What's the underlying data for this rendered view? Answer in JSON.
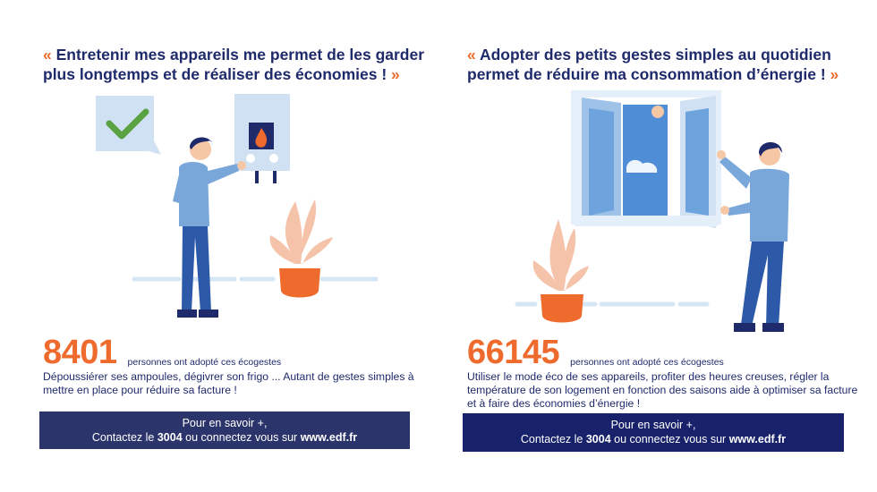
{
  "left": {
    "quote_open": "«",
    "quote_text": "Entretenir mes appareils me permet de les garder plus longtemps et de réaliser des économies !",
    "quote_close": "»",
    "stat_number": "8401",
    "stat_label": "personnes ont adopté ces écogestes",
    "description": "Dépoussiérer ses ampoules, dégivrer son frigo ... Autant de gestes simples à mettre en place pour réduire sa facture !",
    "banner": {
      "line1": "Pour en savoir +,",
      "line2_prefix": "Contactez le ",
      "phone": "3004",
      "line2_middle": " ou connectez vous sur ",
      "website": "www.edf.fr"
    }
  },
  "right": {
    "quote_open": "«",
    "quote_text": "Adopter des petits gestes simples au quotidien permet de réduire ma consommation d’énergie !",
    "quote_close": "»",
    "stat_number": "66145",
    "stat_label": "personnes ont adopté ces écogestes",
    "description": "Utiliser le mode éco de ses appareils, profiter des heures creuses, régler la température de son logement en fonction des saisons aide à optimiser sa facture et à faire des économies d’énergie !",
    "banner": {
      "line1": "Pour en savoir +,",
      "line2_prefix": "Contactez le ",
      "phone": "3004",
      "line2_middle": " ou connectez vous sur ",
      "website": "www.edf.fr"
    }
  },
  "colors": {
    "accent_orange": "#ee6b2d",
    "navy": "#1f2a6b",
    "banner_navy": "#2b346b",
    "light_blue": "#cfe1f3",
    "person_blue": "#7aa7da",
    "check_green": "#5aa144"
  }
}
